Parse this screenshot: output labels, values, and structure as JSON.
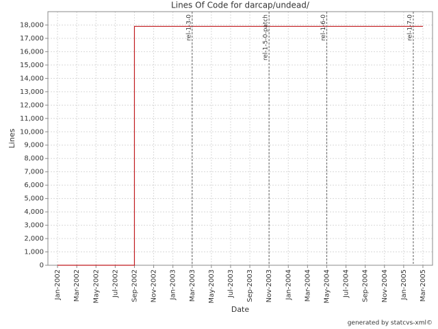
{
  "chart_data": {
    "type": "line",
    "title": "Lines Of Code for darcap/undead/",
    "x_label": "Date",
    "y_label": "Lines",
    "footnote": "generated by statcvs-xml©",
    "x": [
      "2002-01",
      "2002-09",
      "2002-09",
      "2005-03"
    ],
    "values": [
      0,
      0,
      17900,
      17900
    ],
    "color": "#c0181c",
    "xlim": [
      "2001-12",
      "2005-04"
    ],
    "xticks": [
      {
        "value": "2002-01",
        "label": "Jan-2002"
      },
      {
        "value": "2002-03",
        "label": "Mar-2002"
      },
      {
        "value": "2002-05",
        "label": "May-2002"
      },
      {
        "value": "2002-07",
        "label": "Jul-2002"
      },
      {
        "value": "2002-09",
        "label": "Sep-2002"
      },
      {
        "value": "2002-11",
        "label": "Nov-2002"
      },
      {
        "value": "2003-01",
        "label": "Jan-2003"
      },
      {
        "value": "2003-03",
        "label": "Mar-2003"
      },
      {
        "value": "2003-05",
        "label": "May-2003"
      },
      {
        "value": "2003-07",
        "label": "Jul-2003"
      },
      {
        "value": "2003-09",
        "label": "Sep-2003"
      },
      {
        "value": "2003-11",
        "label": "Nov-2003"
      },
      {
        "value": "2004-01",
        "label": "Jan-2004"
      },
      {
        "value": "2004-03",
        "label": "Mar-2004"
      },
      {
        "value": "2004-05",
        "label": "May-2004"
      },
      {
        "value": "2004-07",
        "label": "Jul-2004"
      },
      {
        "value": "2004-09",
        "label": "Sep-2004"
      },
      {
        "value": "2004-11",
        "label": "Nov-2004"
      },
      {
        "value": "2005-01",
        "label": "Jan-2005"
      },
      {
        "value": "2005-03",
        "label": "Mar-2005"
      }
    ],
    "ylim": [
      0,
      19000
    ],
    "yticks": [
      0,
      {
        "value": 1000,
        "label": "1,000"
      },
      {
        "value": 2000,
        "label": "2,000"
      },
      {
        "value": 3000,
        "label": "3,000"
      },
      {
        "value": 4000,
        "label": "4,000"
      },
      {
        "value": 5000,
        "label": "5,000"
      },
      {
        "value": 6000,
        "label": "6,000"
      },
      {
        "value": 7000,
        "label": "7,000"
      },
      {
        "value": 8000,
        "label": "8,000"
      },
      {
        "value": 9000,
        "label": "9,000"
      },
      {
        "value": 10000,
        "label": "10,000"
      },
      {
        "value": 11000,
        "label": "11,000"
      },
      {
        "value": 12000,
        "label": "12,000"
      },
      {
        "value": 13000,
        "label": "13,000"
      },
      {
        "value": 14000,
        "label": "14,000"
      },
      {
        "value": 15000,
        "label": "15,000"
      },
      {
        "value": 16000,
        "label": "16,000"
      },
      {
        "value": 17000,
        "label": "17,000"
      },
      {
        "value": 18000,
        "label": "18,000"
      }
    ],
    "grid": true,
    "annotations": [
      {
        "x": "2003-03",
        "label": "rel-1-3-0"
      },
      {
        "x": "2003-11",
        "label": "rel-1-5-0-patch"
      },
      {
        "x": "2004-05",
        "label": "rel-1-6-0"
      },
      {
        "x": "2005-02",
        "label": "rel-1-7-0"
      }
    ]
  }
}
